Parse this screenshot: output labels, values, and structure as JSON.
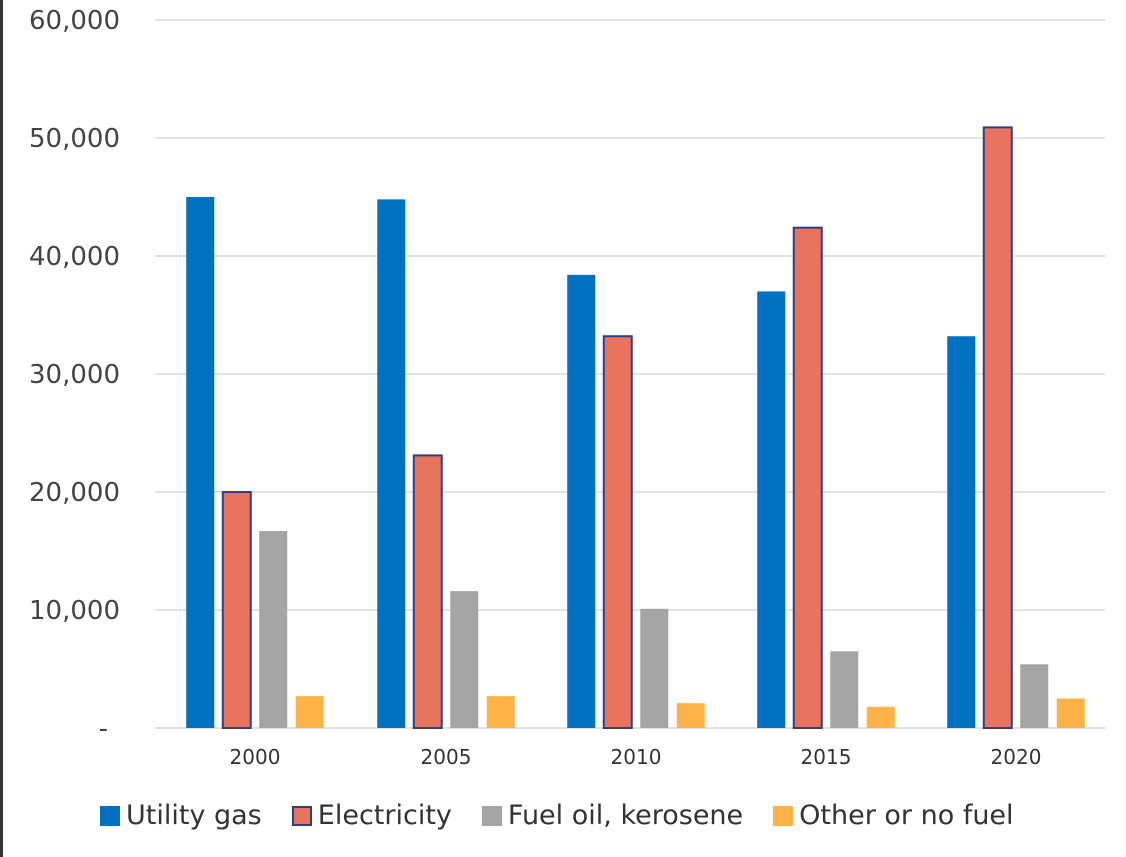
{
  "chart_data": {
    "type": "bar",
    "categories": [
      "2000",
      "2005",
      "2010",
      "2015",
      "2020"
    ],
    "series": [
      {
        "name": "Utility gas",
        "color": "#0070C0",
        "values": [
          45000,
          44800,
          38400,
          37000,
          33200
        ]
      },
      {
        "name": "Electricity",
        "color": "#E8735F",
        "values": [
          20000,
          23100,
          33200,
          42400,
          50900
        ]
      },
      {
        "name": "Fuel oil, kerosene",
        "color": "#A5A5A5",
        "values": [
          16700,
          11600,
          10100,
          6500,
          5400
        ]
      },
      {
        "name": "Other or no fuel",
        "color": "#FFB347",
        "values": [
          2700,
          2700,
          2100,
          1800,
          2500
        ]
      }
    ],
    "y_ticks": [
      {
        "value": 0,
        "label": "-"
      },
      {
        "value": 10000,
        "label": "10,000"
      },
      {
        "value": 20000,
        "label": "20,000"
      },
      {
        "value": 30000,
        "label": "30,000"
      },
      {
        "value": 40000,
        "label": "40,000"
      },
      {
        "value": 50000,
        "label": "50,000"
      },
      {
        "value": 60000,
        "label": "60,000"
      }
    ],
    "ylim": [
      0,
      60000
    ],
    "grid": true,
    "legend_position": "bottom",
    "title": "",
    "xlabel": "",
    "ylabel": ""
  }
}
